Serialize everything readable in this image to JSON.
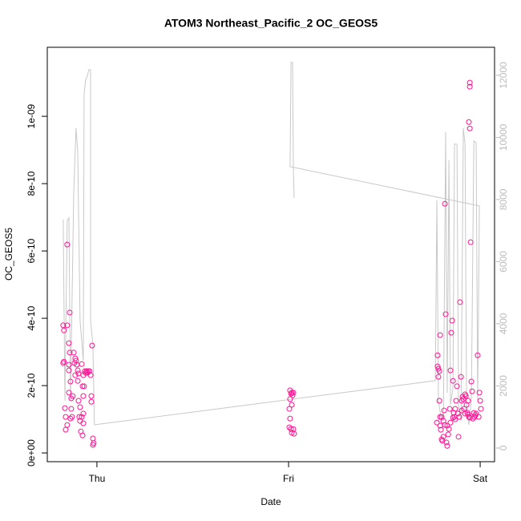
{
  "chart_data": {
    "type": "scatter",
    "title": "ATOM3 Northeast_Pacific_2 OC_GEOS5",
    "x_label": "Date",
    "y_label": "OC_GEOS5",
    "xlim": [
      -0.259,
      2.075
    ],
    "xticks": [
      {
        "value": 0,
        "label": "Thu"
      },
      {
        "value": 1,
        "label": "Fri"
      },
      {
        "value": 2,
        "label": "Sat"
      }
    ],
    "ylim": [
      -2.6e-11,
      1.205e-09
    ],
    "yticks": [
      {
        "value": 0,
        "label": "0e+00"
      },
      {
        "value": 2e-10,
        "label": "2e-10"
      },
      {
        "value": 4e-10,
        "label": "4e-10"
      },
      {
        "value": 6e-10,
        "label": "6e-10"
      },
      {
        "value": 8e-10,
        "label": "8e-10"
      },
      {
        "value": 1e-09,
        "label": "1e-09"
      }
    ],
    "y2lim": [
      -440,
      12900
    ],
    "y2ticks": [
      0,
      2000,
      4000,
      6000,
      8000,
      10000,
      12000
    ],
    "series": [
      {
        "type": "scatter",
        "color": "#ff1493",
        "x": [
          -0.176,
          -0.172,
          -0.155,
          -0.172,
          -0.176,
          -0.167,
          -0.163,
          -0.163,
          -0.155,
          -0.155,
          -0.142,
          -0.146,
          -0.142,
          -0.146,
          -0.146,
          -0.138,
          -0.146,
          -0.134,
          -0.126,
          -0.134,
          -0.13,
          -0.138,
          -0.121,
          -0.113,
          -0.117,
          -0.109,
          -0.105,
          -0.113,
          -0.1,
          -0.096,
          -0.1,
          -0.096,
          -0.092,
          -0.088,
          -0.088,
          -0.079,
          -0.084,
          -0.075,
          -0.071,
          -0.071,
          -0.067,
          -0.063,
          -0.059,
          -0.054,
          -0.05,
          -0.046,
          -0.038,
          -0.033,
          -0.029,
          -0.029,
          -0.025,
          -0.021,
          -0.017,
          -0.021,
          -0.071,
          -0.079,
          -0.071,
          -0.075,
          1.008,
          1.013,
          1.017,
          1.021,
          1.025,
          1.008,
          1.004,
          1.008,
          1.004,
          1.013,
          1.017,
          1.025,
          1.029,
          1.017,
          1.774,
          1.778,
          1.782,
          1.787,
          1.791,
          1.778,
          1.782,
          1.787,
          1.791,
          1.795,
          1.799,
          1.803,
          1.808,
          1.812,
          1.816,
          1.82,
          1.824,
          1.828,
          1.833,
          1.837,
          1.841,
          1.845,
          1.849,
          1.854,
          1.858,
          1.862,
          1.866,
          1.87,
          1.874,
          1.879,
          1.887,
          1.891,
          1.895,
          1.9,
          1.904,
          1.908,
          1.912,
          1.916,
          1.921,
          1.925,
          1.929,
          1.933,
          1.937,
          1.941,
          1.946,
          1.95,
          1.946,
          1.946,
          1.941,
          1.946,
          1.954,
          1.958,
          1.967,
          1.971,
          1.975,
          1.979,
          1.987,
          1.992,
          1.996,
          2.0,
          2.004,
          1.791,
          1.799,
          1.808,
          1.816,
          1.828,
          1.845,
          1.858,
          1.87,
          1.883,
          1.904,
          1.921,
          1.937,
          1.962
        ],
        "values": [
          3.79e-10,
          3.64e-10,
          3.79e-10,
          2.71e-10,
          2.67e-10,
          1.33e-10,
          1.07e-10,
          6.9e-11,
          8.3e-11,
          6.19e-10,
          4.17e-10,
          3.26e-10,
          2.98e-10,
          2.62e-10,
          2.45e-10,
          2.12e-10,
          1.79e-10,
          1.62e-10,
          1.69e-10,
          1.31e-10,
          1.07e-10,
          1.02e-10,
          2.98e-10,
          2.81e-10,
          2.67e-10,
          2.74e-10,
          2.62e-10,
          2.31e-10,
          2.45e-10,
          2.36e-10,
          2.14e-10,
          1.55e-10,
          1.07e-10,
          9.5e-11,
          1.36e-10,
          1.07e-10,
          6.4e-11,
          1.98e-10,
          2.31e-10,
          1.69e-10,
          1.98e-10,
          2.43e-10,
          2.38e-10,
          2.43e-10,
          2.38e-10,
          2.43e-10,
          2.43e-10,
          2.31e-10,
          1.69e-10,
          1.52e-10,
          3.19e-10,
          4.3e-11,
          2.9e-11,
          2.4e-11,
          1.17e-10,
          2.64e-10,
          8.8e-11,
          5.2e-11,
          1.86e-10,
          1.76e-10,
          1.79e-10,
          1.71e-10,
          1.79e-10,
          1.6e-10,
          1.31e-10,
          1.02e-10,
          7.6e-11,
          7.1e-11,
          6e-11,
          7.1e-11,
          5.7e-11,
          1.43e-10,
          9e-11,
          2.57e-10,
          2.5e-10,
          2.43e-10,
          3.5e-10,
          2.9e-10,
          2.26e-10,
          1.55e-10,
          1.07e-10,
          6.9e-11,
          4e-11,
          3.6e-11,
          4.8e-11,
          1.26e-10,
          7.4e-10,
          4.12e-10,
          3.1e-11,
          2.1e-11,
          5.5e-11,
          7.1e-11,
          1.31e-10,
          2.45e-10,
          3.57e-10,
          3.93e-10,
          2.14e-10,
          1.19e-10,
          1.07e-10,
          1e-10,
          1.55e-10,
          1.98e-10,
          4.8e-11,
          1.07e-10,
          4.48e-10,
          2.26e-10,
          1.55e-10,
          1.67e-10,
          1.6e-10,
          1.31e-10,
          1.74e-10,
          1.69e-10,
          1.43e-10,
          1.19e-10,
          1.14e-10,
          1.07e-10,
          1.05e-10,
          6.26e-10,
          1.1e-09,
          1.088e-09,
          9.83e-10,
          9.64e-10,
          2.12e-10,
          1.83e-10,
          1.19e-10,
          1.07e-10,
          1.12e-10,
          1.17e-10,
          2.9e-10,
          1.07e-10,
          1.79e-10,
          1.55e-10,
          1.31e-10,
          8.1e-11,
          1.07e-10,
          9.5e-11,
          8.3e-11,
          8.1e-11,
          9e-11,
          1.05e-10,
          1.31e-10,
          1.17e-10,
          1.26e-10,
          1.17e-10,
          1.55e-10,
          1.02e-10
        ]
      },
      {
        "type": "line",
        "color": "#c8c8c8",
        "axis": "y2",
        "x": [
          -0.176,
          -0.167,
          -0.155,
          -0.146,
          -0.138,
          -0.121,
          -0.109,
          -0.1,
          -0.088,
          -0.071,
          -0.067,
          -0.059,
          -0.05,
          -0.042,
          -0.033,
          -0.033,
          -0.021,
          -0.013,
          1.766,
          1.774,
          1.782,
          1.795,
          1.808,
          1.82,
          1.828,
          1.837,
          1.845,
          1.858,
          1.866,
          1.879,
          1.887,
          1.9,
          1.912,
          1.921,
          1.929,
          1.941,
          1.954,
          1.967,
          1.979,
          1.987,
          1.996,
          1.008,
          1.013,
          1.021,
          1.025,
          1.029
        ],
        "values": [
          7355,
          1523,
          7329,
          7406,
          1523,
          8232,
          10297,
          9523,
          4103,
          2813,
          11381,
          11845,
          11974,
          12181,
          12181,
          4103,
          3329,
          748,
          2168,
          7974,
          1523,
          1006,
          877,
          10168,
          1781,
          9265,
          1394,
          1910,
          9781,
          9781,
          1394,
          877,
          10297,
          9781,
          1394,
          748,
          1523,
          9884,
          9832,
          1523,
          7794,
          9058,
          12413,
          12413,
          9058,
          8052
        ]
      }
    ]
  }
}
